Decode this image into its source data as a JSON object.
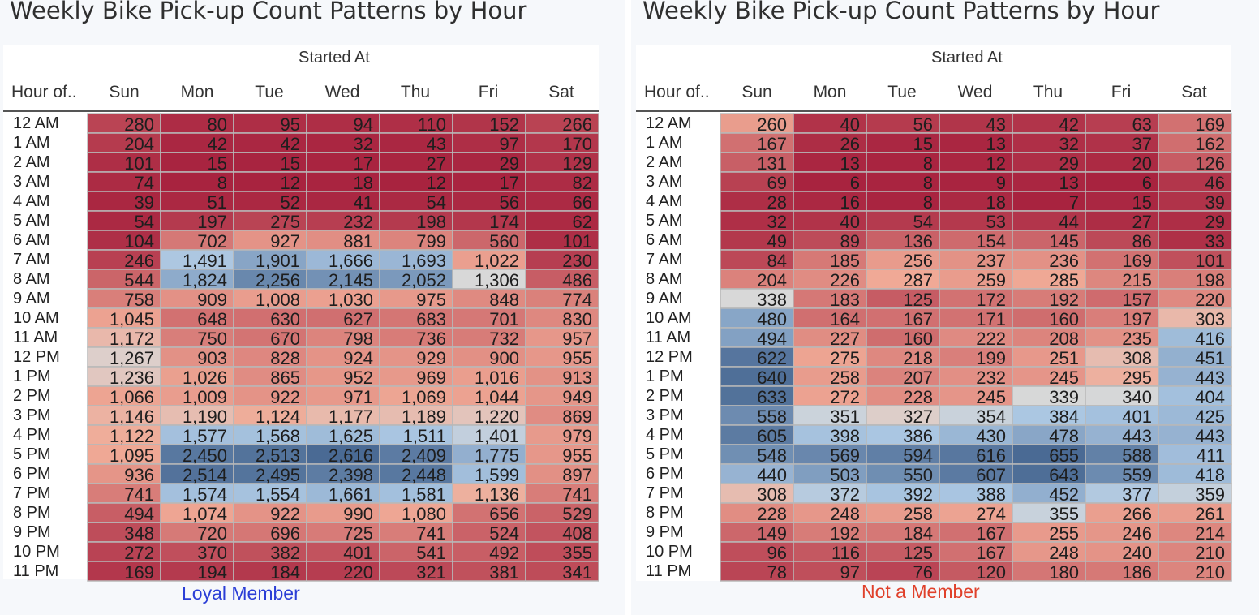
{
  "colors": {
    "blue_dark": "#4a6a94",
    "grey_mid": "#d8d8d8",
    "red_dark": "#a8233f",
    "left_caption": "#2b3ed6",
    "right_caption": "#e0412b"
  },
  "chart_data": [
    {
      "type": "heatmap",
      "title": "Weekly Bike Pick-up Count Patterns by Hour",
      "column_group_label": "Started At",
      "row_header_label": "Hour of..",
      "caption": "Loyal Member",
      "categories": [
        "Sun",
        "Mon",
        "Tue",
        "Wed",
        "Thu",
        "Fri",
        "Sat"
      ],
      "rows": [
        "12 AM",
        "1 AM",
        "2 AM",
        "3 AM",
        "4 AM",
        "5 AM",
        "6 AM",
        "7 AM",
        "8 AM",
        "9 AM",
        "10 AM",
        "11 AM",
        "12 PM",
        "1 PM",
        "2 PM",
        "3 PM",
        "4 PM",
        "5 PM",
        "6 PM",
        "7 PM",
        "8 PM",
        "9 PM",
        "10 PM",
        "11 PM"
      ],
      "color_min": 8,
      "color_mid": 1306,
      "color_max": 2616,
      "values": [
        [
          280,
          80,
          95,
          94,
          110,
          152,
          266
        ],
        [
          204,
          42,
          42,
          32,
          43,
          97,
          170
        ],
        [
          101,
          15,
          15,
          17,
          27,
          29,
          129
        ],
        [
          74,
          8,
          12,
          18,
          12,
          17,
          82
        ],
        [
          39,
          51,
          52,
          41,
          54,
          56,
          66
        ],
        [
          54,
          197,
          275,
          232,
          198,
          174,
          62
        ],
        [
          104,
          702,
          927,
          881,
          799,
          560,
          101
        ],
        [
          246,
          1491,
          1901,
          1666,
          1693,
          1022,
          230
        ],
        [
          544,
          1824,
          2256,
          2145,
          2052,
          1306,
          486
        ],
        [
          758,
          909,
          1008,
          1030,
          975,
          848,
          774
        ],
        [
          1045,
          648,
          630,
          627,
          683,
          701,
          830
        ],
        [
          1172,
          750,
          670,
          798,
          736,
          732,
          957
        ],
        [
          1267,
          903,
          828,
          924,
          929,
          900,
          955
        ],
        [
          1236,
          1026,
          865,
          952,
          969,
          1016,
          913
        ],
        [
          1066,
          1009,
          922,
          971,
          1069,
          1044,
          949
        ],
        [
          1146,
          1190,
          1124,
          1177,
          1189,
          1220,
          869
        ],
        [
          1122,
          1577,
          1568,
          1625,
          1511,
          1401,
          979
        ],
        [
          1095,
          2450,
          2513,
          2616,
          2409,
          1775,
          955
        ],
        [
          936,
          2514,
          2495,
          2398,
          2448,
          1599,
          897
        ],
        [
          741,
          1574,
          1554,
          1661,
          1581,
          1136,
          741
        ],
        [
          494,
          1074,
          922,
          990,
          1080,
          656,
          529
        ],
        [
          348,
          720,
          696,
          725,
          741,
          524,
          408
        ],
        [
          272,
          370,
          382,
          401,
          541,
          492,
          355
        ],
        [
          169,
          194,
          184,
          220,
          321,
          381,
          341
        ]
      ]
    },
    {
      "type": "heatmap",
      "title": "Weekly Bike Pick-up Count Patterns by Hour",
      "column_group_label": "Started At",
      "row_header_label": "Hour of..",
      "caption": "Not a Member",
      "categories": [
        "Sun",
        "Mon",
        "Tue",
        "Wed",
        "Thu",
        "Fri",
        "Sat"
      ],
      "rows": [
        "12 AM",
        "1 AM",
        "2 AM",
        "3 AM",
        "4 AM",
        "5 AM",
        "6 AM",
        "7 AM",
        "8 AM",
        "9 AM",
        "10 AM",
        "11 AM",
        "12 PM",
        "1 PM",
        "2 PM",
        "3 PM",
        "4 PM",
        "5 PM",
        "6 PM",
        "7 PM",
        "8 PM",
        "9 PM",
        "10 PM",
        "11 PM"
      ],
      "color_min": 6,
      "color_mid": 338,
      "color_max": 655,
      "values": [
        [
          260,
          40,
          56,
          43,
          42,
          63,
          169
        ],
        [
          167,
          26,
          15,
          13,
          32,
          37,
          162
        ],
        [
          131,
          13,
          8,
          12,
          29,
          20,
          126
        ],
        [
          69,
          6,
          8,
          9,
          13,
          6,
          46
        ],
        [
          28,
          16,
          8,
          18,
          7,
          15,
          39
        ],
        [
          32,
          40,
          54,
          53,
          44,
          27,
          29
        ],
        [
          49,
          89,
          136,
          154,
          145,
          86,
          33
        ],
        [
          84,
          185,
          256,
          237,
          236,
          169,
          101
        ],
        [
          204,
          226,
          287,
          259,
          285,
          215,
          198
        ],
        [
          338,
          183,
          125,
          172,
          192,
          157,
          220
        ],
        [
          480,
          164,
          167,
          171,
          160,
          197,
          303
        ],
        [
          494,
          227,
          160,
          222,
          208,
          235,
          416
        ],
        [
          622,
          275,
          218,
          199,
          251,
          308,
          451
        ],
        [
          640,
          258,
          207,
          232,
          245,
          295,
          443
        ],
        [
          633,
          272,
          228,
          245,
          339,
          340,
          404
        ],
        [
          558,
          351,
          327,
          354,
          384,
          401,
          425
        ],
        [
          605,
          398,
          386,
          430,
          478,
          443,
          443
        ],
        [
          548,
          569,
          594,
          616,
          655,
          588,
          411
        ],
        [
          440,
          503,
          550,
          607,
          643,
          559,
          418
        ],
        [
          308,
          372,
          392,
          388,
          452,
          377,
          359
        ],
        [
          228,
          248,
          258,
          274,
          355,
          266,
          261
        ],
        [
          149,
          192,
          184,
          167,
          255,
          246,
          214
        ],
        [
          96,
          116,
          125,
          167,
          248,
          240,
          210
        ],
        [
          78,
          97,
          76,
          120,
          180,
          186,
          210
        ]
      ]
    }
  ]
}
